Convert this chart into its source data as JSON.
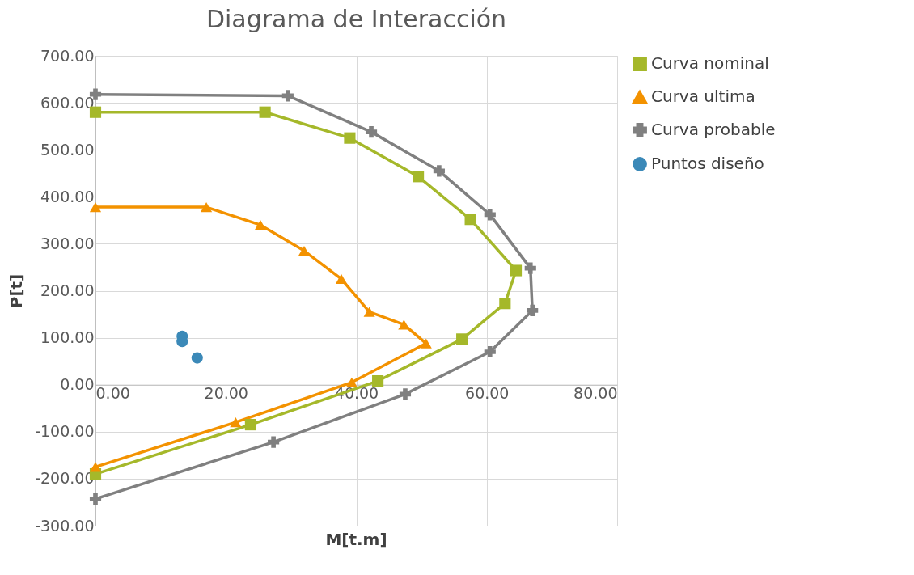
{
  "chart_data": {
    "type": "line",
    "title": "Diagrama de Interacción",
    "xlabel": "M[t.m]",
    "ylabel": "P[t]",
    "xlim": [
      0,
      80
    ],
    "ylim": [
      -300,
      700
    ],
    "xticks": [
      {
        "value": 0,
        "label": "0.00"
      },
      {
        "value": 20,
        "label": "20.00"
      },
      {
        "value": 40,
        "label": "40.00"
      },
      {
        "value": 60,
        "label": "60.00"
      },
      {
        "value": 80,
        "label": "80.00"
      }
    ],
    "yticks": [
      {
        "value": -300,
        "label": "-300.00"
      },
      {
        "value": -200,
        "label": "-200.00"
      },
      {
        "value": -100,
        "label": "-100.00"
      },
      {
        "value": 0,
        "label": "0.00"
      },
      {
        "value": 100,
        "label": "100.00"
      },
      {
        "value": 200,
        "label": "200.00"
      },
      {
        "value": 300,
        "label": "300.00"
      },
      {
        "value": 400,
        "label": "400.00"
      },
      {
        "value": 500,
        "label": "500.00"
      },
      {
        "value": 600,
        "label": "600.00"
      },
      {
        "value": 700,
        "label": "700.00"
      }
    ],
    "grid": true,
    "legend": "right",
    "line_style": "solid",
    "series": [
      {
        "name": "Curva nominal",
        "color": "#a5b82a",
        "marker": "square",
        "x": [
          0,
          26,
          39,
          49.5,
          57.5,
          64.5,
          62.8,
          56.2,
          43.3,
          23.8,
          0
        ],
        "values": [
          580,
          580,
          525,
          443,
          352,
          243,
          173,
          97,
          8,
          -85,
          -190
        ]
      },
      {
        "name": "Curva ultima",
        "color": "#f39200",
        "marker": "triangle",
        "x": [
          0,
          17,
          25.3,
          32,
          37.7,
          42,
          47.3,
          50.7,
          39.3,
          21.5,
          0
        ],
        "values": [
          378,
          378,
          340,
          285,
          225,
          155,
          128,
          88,
          5,
          -80,
          -175
        ]
      },
      {
        "name": "Curva probable",
        "color": "#808080",
        "marker": "cross",
        "x": [
          0,
          29.5,
          42.3,
          52.7,
          60.5,
          66.7,
          67,
          60.5,
          47.5,
          27.3,
          0
        ],
        "values": [
          618,
          615,
          538,
          455,
          362,
          248,
          158,
          70,
          -20,
          -122,
          -243
        ]
      },
      {
        "name": "Puntos diseño",
        "type": "scatter",
        "color": "#3b89b8",
        "marker": "circle",
        "x": [
          13.3,
          13.3,
          15.6
        ],
        "values": [
          103,
          92,
          57
        ]
      }
    ]
  }
}
